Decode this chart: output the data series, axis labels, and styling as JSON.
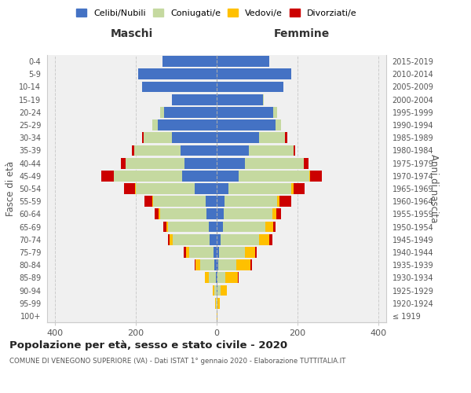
{
  "age_groups": [
    "100+",
    "95-99",
    "90-94",
    "85-89",
    "80-84",
    "75-79",
    "70-74",
    "65-69",
    "60-64",
    "55-59",
    "50-54",
    "45-49",
    "40-44",
    "35-39",
    "30-34",
    "25-29",
    "20-24",
    "15-19",
    "10-14",
    "5-9",
    "0-4"
  ],
  "birth_years": [
    "≤ 1919",
    "1920-1924",
    "1925-1929",
    "1930-1934",
    "1935-1939",
    "1940-1944",
    "1945-1949",
    "1950-1954",
    "1955-1959",
    "1960-1964",
    "1965-1969",
    "1970-1974",
    "1975-1979",
    "1980-1984",
    "1985-1989",
    "1990-1994",
    "1995-1999",
    "2000-2004",
    "2005-2009",
    "2010-2014",
    "2015-2019"
  ],
  "colors": {
    "celibe": "#4472C4",
    "coniugato": "#c5d9a0",
    "vedovo": "#ffc000",
    "divorziato": "#cc0000"
  },
  "maschi": {
    "celibe": [
      0,
      0,
      0,
      2,
      5,
      8,
      18,
      20,
      25,
      28,
      55,
      85,
      80,
      90,
      110,
      145,
      130,
      110,
      185,
      195,
      135
    ],
    "coniugato": [
      0,
      2,
      5,
      18,
      35,
      60,
      90,
      100,
      115,
      130,
      145,
      170,
      145,
      115,
      70,
      15,
      10,
      0,
      0,
      0,
      0
    ],
    "vedovo": [
      0,
      2,
      5,
      10,
      12,
      8,
      8,
      5,
      3,
      2,
      2,
      0,
      0,
      0,
      0,
      0,
      0,
      0,
      0,
      0,
      0
    ],
    "divorziato": [
      0,
      0,
      0,
      0,
      3,
      5,
      5,
      8,
      10,
      18,
      28,
      30,
      12,
      5,
      5,
      0,
      0,
      0,
      0,
      0,
      0
    ]
  },
  "femmine": {
    "nubile": [
      0,
      0,
      2,
      2,
      3,
      5,
      10,
      15,
      18,
      20,
      30,
      55,
      70,
      80,
      105,
      145,
      140,
      115,
      165,
      185,
      130
    ],
    "coniugata": [
      0,
      2,
      8,
      20,
      45,
      65,
      95,
      105,
      120,
      130,
      155,
      175,
      145,
      110,
      65,
      15,
      10,
      2,
      0,
      0,
      0
    ],
    "vedova": [
      2,
      5,
      15,
      30,
      35,
      25,
      25,
      20,
      10,
      5,
      5,
      2,
      0,
      0,
      0,
      0,
      0,
      0,
      0,
      0,
      0
    ],
    "divorziata": [
      0,
      0,
      0,
      2,
      5,
      5,
      8,
      5,
      12,
      30,
      28,
      28,
      12,
      5,
      5,
      0,
      0,
      0,
      0,
      0,
      0
    ]
  },
  "title": "Popolazione per età, sesso e stato civile - 2020",
  "subtitle": "COMUNE DI VENEGONO SUPERIORE (VA) - Dati ISTAT 1° gennaio 2020 - Elaborazione TUTTITALIA.IT",
  "xlabel_left": "Maschi",
  "xlabel_right": "Femmine",
  "ylabel_left": "Fasce di età",
  "ylabel_right": "Anni di nascita",
  "xlim": 420,
  "legend_labels": [
    "Celibi/Nubili",
    "Coniugati/e",
    "Vedovi/e",
    "Divorziati/e"
  ],
  "bg_color": "#f0f0f0"
}
